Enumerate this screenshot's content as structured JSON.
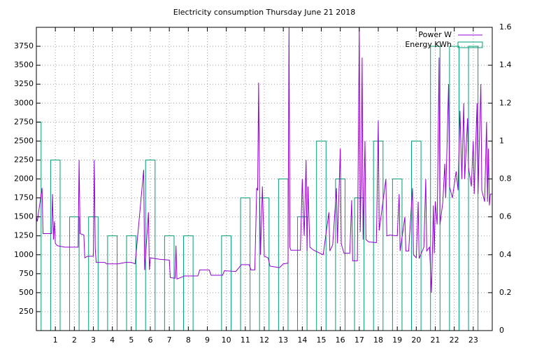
{
  "chart_data": {
    "type": "line",
    "title": "Electricity consumption Thursday June 21 2018",
    "xlim": [
      0,
      24
    ],
    "xticks": [
      1,
      2,
      3,
      4,
      5,
      6,
      7,
      8,
      9,
      10,
      11,
      12,
      13,
      14,
      15,
      16,
      17,
      18,
      19,
      20,
      21,
      22,
      23
    ],
    "ylim": [
      0,
      4000
    ],
    "yticks": [
      250,
      500,
      750,
      1000,
      1250,
      1500,
      1750,
      2000,
      2250,
      2500,
      2750,
      3000,
      3250,
      3500,
      3750
    ],
    "y2lim": [
      0,
      1.6
    ],
    "y2ticks": [
      0,
      0.2,
      0.4,
      0.6,
      0.8,
      1,
      1.2,
      1.4,
      1.6
    ],
    "grid": true,
    "legend": "top-right",
    "series": [
      {
        "name": "Power W",
        "type": "line",
        "color": "#9400d3",
        "x": [
          0,
          0.05,
          0.3,
          0.35,
          0.8,
          0.85,
          0.9,
          0.95,
          1.0,
          1.1,
          1.5,
          2.2,
          2.25,
          2.3,
          2.5,
          2.55,
          2.7,
          3.0,
          3.05,
          3.1,
          3.15,
          3.6,
          3.7,
          4.3,
          4.7,
          5.0,
          5.2,
          5.65,
          5.7,
          5.9,
          5.95,
          6.0,
          6.5,
          7.0,
          7.05,
          7.3,
          7.35,
          7.4,
          7.8,
          8.5,
          8.6,
          9.1,
          9.2,
          9.8,
          9.9,
          10.5,
          10.8,
          11.2,
          11.3,
          11.5,
          11.6,
          11.65,
          11.7,
          11.75,
          11.8,
          11.9,
          12.0,
          12.2,
          12.3,
          12.8,
          13.0,
          13.25,
          13.3,
          13.35,
          13.4,
          13.9,
          14.0,
          14.1,
          14.2,
          14.25,
          14.3,
          14.4,
          14.5,
          14.6,
          15.1,
          15.4,
          15.45,
          15.6,
          15.8,
          15.85,
          16.0,
          16.05,
          16.1,
          16.2,
          16.5,
          16.6,
          16.65,
          16.9,
          17.0,
          17.05,
          17.1,
          17.15,
          17.2,
          17.3,
          17.35,
          17.5,
          17.9,
          18.0,
          18.05,
          18.4,
          18.45,
          18.6,
          19.0,
          19.1,
          19.15,
          19.4,
          19.45,
          19.6,
          19.8,
          19.85,
          20.0,
          20.1,
          20.15,
          20.4,
          20.5,
          20.55,
          20.7,
          20.8,
          20.85,
          20.9,
          20.95,
          21.0,
          21.1,
          21.2,
          21.25,
          21.4,
          21.5,
          21.55,
          21.7,
          21.75,
          21.9,
          22.1,
          22.2,
          22.3,
          22.4,
          22.5,
          22.55,
          22.7,
          22.75,
          22.9,
          23.0,
          23.05,
          23.2,
          23.25,
          23.4,
          23.45,
          23.6,
          23.7,
          23.75,
          23.8,
          23.85,
          23.9,
          24.0
        ],
        "values": [
          1500,
          1440,
          1880,
          1280,
          1280,
          1800,
          1200,
          1440,
          1150,
          1120,
          1100,
          1100,
          2250,
          1280,
          1260,
          960,
          980,
          980,
          2250,
          1080,
          900,
          900,
          880,
          880,
          900,
          900,
          880,
          2120,
          800,
          1560,
          800,
          960,
          940,
          930,
          700,
          690,
          1120,
          680,
          720,
          720,
          800,
          800,
          730,
          730,
          790,
          780,
          870,
          870,
          800,
          800,
          1880,
          1850,
          3270,
          1880,
          1000,
          1900,
          980,
          960,
          850,
          830,
          880,
          890,
          4000,
          1100,
          1060,
          1060,
          2000,
          1250,
          2250,
          1050,
          1900,
          1100,
          1080,
          1060,
          1000,
          1560,
          1050,
          1130,
          1880,
          1150,
          2400,
          1150,
          1100,
          1020,
          1020,
          1720,
          920,
          920,
          4000,
          1300,
          2000,
          3600,
          1200,
          2500,
          1200,
          1170,
          1160,
          2770,
          1320,
          2000,
          1250,
          1260,
          1250,
          1800,
          1050,
          1500,
          1050,
          1050,
          1880,
          1000,
          960,
          1700,
          950,
          1100,
          2000,
          1050,
          1100,
          500,
          1050,
          1650,
          1020,
          1700,
          1400,
          3600,
          1400,
          1700,
          2200,
          1750,
          3250,
          1900,
          1750,
          2100,
          1850,
          2900,
          2000,
          3000,
          2000,
          2800,
          2150,
          1900,
          2500,
          1800,
          3000,
          1800,
          3250,
          1850,
          1700,
          2750,
          1700,
          2400,
          1650,
          1800,
          1800
        ]
      },
      {
        "name": "Energy KWh",
        "type": "bar",
        "axis": "y2",
        "color": "#009e73",
        "x": [
          0,
          1,
          2,
          3,
          4,
          5,
          6,
          7,
          8,
          9,
          10,
          11,
          12,
          13,
          14,
          15,
          16,
          17,
          18,
          19,
          20,
          21,
          22,
          23
        ],
        "values": [
          1.1,
          0.9,
          0.6,
          0.6,
          0.5,
          0.5,
          0.9,
          0.5,
          0.5,
          0,
          0.5,
          0.7,
          0.7,
          0.8,
          0.6,
          1.0,
          0.8,
          0.7,
          1.0,
          0.8,
          1.0,
          1.5,
          1.5,
          1.5
        ]
      }
    ]
  }
}
